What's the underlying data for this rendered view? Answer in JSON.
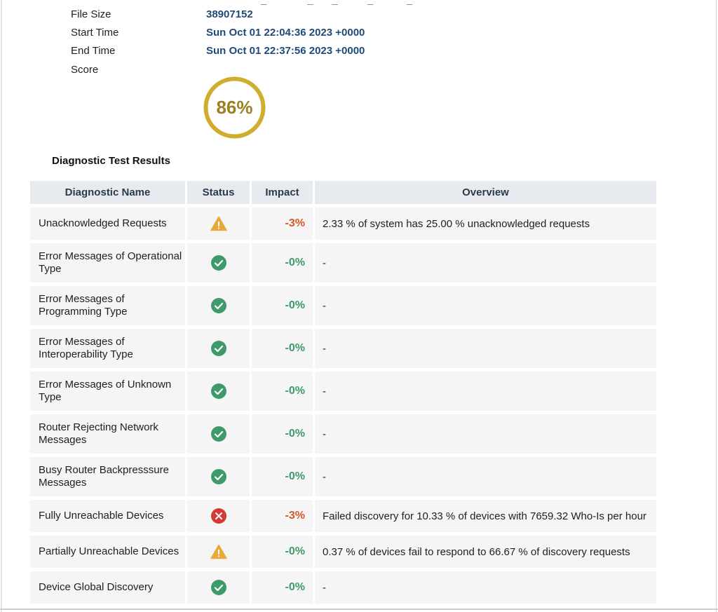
{
  "meta": [
    {
      "label": "File Size",
      "value": "38907152"
    },
    {
      "label": "Start Time",
      "value": "Sun Oct 01 22:04:36 2023 +0000"
    },
    {
      "label": "End Time",
      "value": "Sun Oct 01 22:37:56 2023 +0000"
    },
    {
      "label": "Score",
      "value": ""
    }
  ],
  "score": {
    "value": "86%",
    "fraction": 0.86,
    "color": "#cfae2f"
  },
  "section_title": "Diagnostic Test Results",
  "table": {
    "headers": {
      "name": "Diagnostic Name",
      "status": "Status",
      "impact": "Impact",
      "overview": "Overview"
    },
    "rows": [
      {
        "name": "Unacknowledged Requests",
        "status_icon": "warning-icon",
        "impact": "-3%",
        "overview": "2.33 % of system has 25.00 % unacknowledged requests"
      },
      {
        "name": "Error Messages of Operational Type",
        "status_icon": "check-circle-icon",
        "impact": "-0%",
        "overview": "-"
      },
      {
        "name": "Error Messages of Programming Type",
        "status_icon": "check-circle-icon",
        "impact": "-0%",
        "overview": "-"
      },
      {
        "name": "Error Messages of Interoperability Type",
        "status_icon": "check-circle-icon",
        "impact": "-0%",
        "overview": "-"
      },
      {
        "name": "Error Messages of Unknown Type",
        "status_icon": "check-circle-icon",
        "impact": "-0%",
        "overview": "-"
      },
      {
        "name": "Router Rejecting Network Messages",
        "status_icon": "check-circle-icon",
        "impact": "-0%",
        "overview": "-"
      },
      {
        "name": "Busy Router Backpresssure Messages",
        "status_icon": "check-circle-icon",
        "impact": "-0%",
        "overview": "-"
      },
      {
        "name": "Fully Unreachable Devices",
        "status_icon": "error-circle-icon",
        "impact": "-3%",
        "overview": "Failed discovery for 10.33 % of devices with 7659.32 Who-Is per hour"
      },
      {
        "name": "Partially Unreachable Devices",
        "status_icon": "warning-icon",
        "impact": "-0%",
        "overview": "0.37 % of devices fail to respond to 66.67 % of discovery requests"
      },
      {
        "name": "Device Global Discovery",
        "status_icon": "check-circle-icon",
        "impact": "-0%",
        "overview": "-"
      }
    ]
  },
  "colors": {
    "accent_value": "#1e4a7a",
    "ok": "#3f9a6a",
    "warning": "#e8a93a",
    "error": "#d33b36",
    "impact_bad": "#d35a2a"
  }
}
